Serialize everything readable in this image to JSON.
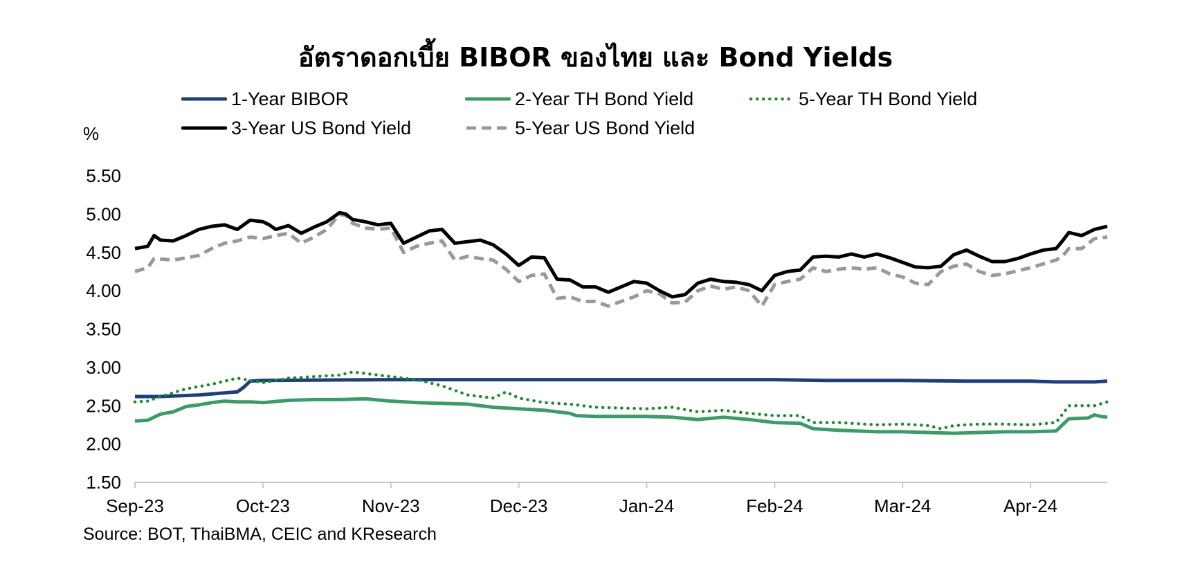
{
  "chart_data": {
    "type": "line",
    "title": "อัตราดอกเบี้ย BIBOR ของไทย และ Bond Yields",
    "ylabel": "%",
    "ylim": [
      1.5,
      5.5
    ],
    "yticks": [
      "5.50",
      "5.00",
      "4.50",
      "4.00",
      "3.50",
      "3.00",
      "2.50",
      "2.00",
      "1.50"
    ],
    "xlim": [
      0,
      7.6
    ],
    "xticks": [
      {
        "label": "Sep-23",
        "x": 0
      },
      {
        "label": "Oct-23",
        "x": 1
      },
      {
        "label": "Nov-23",
        "x": 2
      },
      {
        "label": "Dec-23",
        "x": 3
      },
      {
        "label": "Jan-24",
        "x": 4
      },
      {
        "label": "Feb-24",
        "x": 5
      },
      {
        "label": "Mar-24",
        "x": 6
      },
      {
        "label": "Apr-24",
        "x": 7
      }
    ],
    "grid": false,
    "legend_position": "top",
    "source": "Source: BOT, ThaiBMA, CEIC and KResearch",
    "series": [
      {
        "name": "1-Year BIBOR",
        "color": "#1F3F77",
        "style": "solid",
        "x": [
          0,
          0.2,
          0.5,
          0.8,
          0.85,
          0.9,
          1.0,
          2.0,
          3.0,
          4.0,
          5.0,
          5.4,
          6.0,
          6.5,
          7.0,
          7.2,
          7.5,
          7.6
        ],
        "values": [
          2.62,
          2.62,
          2.64,
          2.68,
          2.74,
          2.82,
          2.83,
          2.84,
          2.84,
          2.84,
          2.84,
          2.83,
          2.83,
          2.82,
          2.82,
          2.81,
          2.81,
          2.82
        ]
      },
      {
        "name": "2-Year TH Bond Yield",
        "color": "#3D9B6A",
        "style": "solid",
        "x": [
          0,
          0.1,
          0.2,
          0.3,
          0.4,
          0.5,
          0.6,
          0.7,
          0.8,
          0.9,
          1.0,
          1.2,
          1.4,
          1.6,
          1.8,
          2.0,
          2.2,
          2.4,
          2.6,
          2.8,
          3.0,
          3.2,
          3.4,
          3.45,
          3.6,
          3.8,
          4.0,
          4.2,
          4.4,
          4.6,
          4.8,
          5.0,
          5.2,
          5.3,
          5.5,
          5.8,
          6.0,
          6.2,
          6.4,
          6.6,
          6.8,
          7.0,
          7.2,
          7.3,
          7.45,
          7.5,
          7.55,
          7.6
        ],
        "values": [
          2.3,
          2.31,
          2.39,
          2.42,
          2.49,
          2.51,
          2.54,
          2.56,
          2.55,
          2.55,
          2.54,
          2.57,
          2.58,
          2.58,
          2.59,
          2.56,
          2.54,
          2.53,
          2.52,
          2.48,
          2.46,
          2.44,
          2.4,
          2.37,
          2.36,
          2.36,
          2.36,
          2.35,
          2.32,
          2.35,
          2.32,
          2.28,
          2.27,
          2.2,
          2.18,
          2.16,
          2.16,
          2.15,
          2.14,
          2.15,
          2.16,
          2.16,
          2.17,
          2.33,
          2.34,
          2.38,
          2.36,
          2.35
        ]
      },
      {
        "name": "5-Year TH Bond Yield",
        "color": "#1E8A2E",
        "style": "dotted",
        "x": [
          0,
          0.1,
          0.2,
          0.4,
          0.6,
          0.8,
          0.9,
          1.0,
          1.2,
          1.4,
          1.6,
          1.7,
          1.8,
          2.0,
          2.2,
          2.4,
          2.6,
          2.8,
          2.9,
          3.0,
          3.2,
          3.4,
          3.6,
          3.8,
          4.0,
          4.2,
          4.4,
          4.6,
          4.8,
          5.0,
          5.2,
          5.3,
          5.5,
          5.8,
          6.0,
          6.2,
          6.3,
          6.4,
          6.6,
          6.8,
          7.0,
          7.2,
          7.3,
          7.5,
          7.6
        ],
        "values": [
          2.55,
          2.56,
          2.62,
          2.72,
          2.78,
          2.86,
          2.83,
          2.8,
          2.86,
          2.88,
          2.9,
          2.94,
          2.92,
          2.88,
          2.84,
          2.76,
          2.64,
          2.6,
          2.68,
          2.6,
          2.54,
          2.52,
          2.48,
          2.47,
          2.46,
          2.48,
          2.42,
          2.44,
          2.4,
          2.37,
          2.37,
          2.28,
          2.28,
          2.25,
          2.26,
          2.24,
          2.2,
          2.24,
          2.26,
          2.26,
          2.25,
          2.28,
          2.5,
          2.5,
          2.55
        ]
      },
      {
        "name": "3-Year US Bond Yield",
        "color": "#000000",
        "style": "solid",
        "x": [
          0,
          0.1,
          0.15,
          0.2,
          0.3,
          0.4,
          0.5,
          0.6,
          0.7,
          0.8,
          0.9,
          1.0,
          1.05,
          1.1,
          1.2,
          1.3,
          1.4,
          1.5,
          1.6,
          1.65,
          1.7,
          1.8,
          1.9,
          2.0,
          2.1,
          2.2,
          2.3,
          2.4,
          2.5,
          2.6,
          2.7,
          2.8,
          2.9,
          3.0,
          3.1,
          3.2,
          3.3,
          3.4,
          3.5,
          3.6,
          3.7,
          3.8,
          3.9,
          4.0,
          4.1,
          4.2,
          4.3,
          4.4,
          4.5,
          4.6,
          4.7,
          4.8,
          4.9,
          5.0,
          5.1,
          5.2,
          5.3,
          5.4,
          5.5,
          5.6,
          5.7,
          5.8,
          5.9,
          6.0,
          6.1,
          6.2,
          6.3,
          6.4,
          6.5,
          6.6,
          6.7,
          6.8,
          6.9,
          7.0,
          7.1,
          7.2,
          7.25,
          7.3,
          7.4,
          7.5,
          7.55,
          7.6
        ],
        "values": [
          4.55,
          4.58,
          4.72,
          4.66,
          4.65,
          4.72,
          4.8,
          4.84,
          4.86,
          4.8,
          4.92,
          4.9,
          4.86,
          4.8,
          4.85,
          4.75,
          4.83,
          4.9,
          5.02,
          5.0,
          4.93,
          4.9,
          4.86,
          4.88,
          4.62,
          4.7,
          4.78,
          4.8,
          4.62,
          4.64,
          4.66,
          4.6,
          4.48,
          4.33,
          4.44,
          4.43,
          4.15,
          4.14,
          4.05,
          4.05,
          3.98,
          4.05,
          4.12,
          4.1,
          4.0,
          3.92,
          3.95,
          4.1,
          4.15,
          4.12,
          4.11,
          4.08,
          4.0,
          4.2,
          4.25,
          4.27,
          4.44,
          4.45,
          4.44,
          4.48,
          4.44,
          4.48,
          4.43,
          4.37,
          4.31,
          4.3,
          4.32,
          4.47,
          4.53,
          4.45,
          4.38,
          4.38,
          4.42,
          4.48,
          4.53,
          4.55,
          4.65,
          4.76,
          4.72,
          4.8,
          4.82,
          4.84
        ]
      },
      {
        "name": "5-Year US Bond Yield",
        "color": "#999999",
        "style": "dashed",
        "x": [
          0,
          0.1,
          0.15,
          0.3,
          0.4,
          0.5,
          0.6,
          0.7,
          0.8,
          0.9,
          1.0,
          1.1,
          1.2,
          1.3,
          1.4,
          1.5,
          1.6,
          1.65,
          1.7,
          1.8,
          1.9,
          2.0,
          2.1,
          2.2,
          2.3,
          2.4,
          2.5,
          2.6,
          2.7,
          2.8,
          2.9,
          3.0,
          3.1,
          3.2,
          3.3,
          3.4,
          3.5,
          3.6,
          3.7,
          3.8,
          3.9,
          4.0,
          4.1,
          4.2,
          4.3,
          4.4,
          4.5,
          4.6,
          4.7,
          4.8,
          4.9,
          5.0,
          5.1,
          5.2,
          5.3,
          5.4,
          5.5,
          5.6,
          5.7,
          5.8,
          5.9,
          6.0,
          6.1,
          6.2,
          6.3,
          6.4,
          6.5,
          6.6,
          6.7,
          6.8,
          6.9,
          7.0,
          7.1,
          7.2,
          7.25,
          7.3,
          7.4,
          7.5,
          7.6
        ],
        "values": [
          4.25,
          4.3,
          4.42,
          4.4,
          4.43,
          4.46,
          4.55,
          4.62,
          4.65,
          4.7,
          4.68,
          4.72,
          4.75,
          4.62,
          4.7,
          4.8,
          5.0,
          4.98,
          4.88,
          4.82,
          4.8,
          4.82,
          4.5,
          4.58,
          4.62,
          4.65,
          4.4,
          4.45,
          4.42,
          4.4,
          4.28,
          4.12,
          4.2,
          4.22,
          3.9,
          3.92,
          3.86,
          3.86,
          3.8,
          3.86,
          3.92,
          4.0,
          3.96,
          3.84,
          3.85,
          4.0,
          4.06,
          4.02,
          4.05,
          4.0,
          3.8,
          4.08,
          4.12,
          4.15,
          4.3,
          4.25,
          4.28,
          4.3,
          4.28,
          4.3,
          4.22,
          4.18,
          4.1,
          4.08,
          4.25,
          4.32,
          4.35,
          4.25,
          4.2,
          4.22,
          4.26,
          4.3,
          4.35,
          4.4,
          4.45,
          4.55,
          4.55,
          4.68,
          4.7
        ]
      }
    ]
  }
}
